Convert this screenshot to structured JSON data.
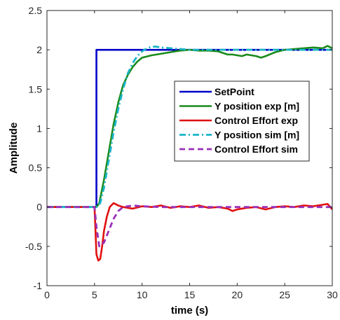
{
  "chart_data": {
    "type": "line",
    "xlabel": "time (s)",
    "ylabel": "Amplitude",
    "xlim": [
      0,
      30
    ],
    "ylim": [
      -1,
      2.5
    ],
    "xticks": [
      0,
      5,
      10,
      15,
      20,
      25,
      30
    ],
    "yticks": [
      -1,
      -0.5,
      0,
      0.5,
      1,
      1.5,
      2,
      2.5
    ],
    "xtick_labels": [
      "0",
      "5",
      "10",
      "15",
      "20",
      "25",
      "30"
    ],
    "ytick_labels": [
      "-1",
      "-0.5",
      "0",
      "0.5",
      "1",
      "1.5",
      "2",
      "2.5"
    ],
    "grid": false,
    "legend_position": "inside-right",
    "series": [
      {
        "name": "SetPoint",
        "color": "#0000c8",
        "dash": "solid",
        "x": [
          0,
          5.2,
          5.2,
          30
        ],
        "y": [
          0,
          0,
          2,
          2
        ]
      },
      {
        "name": "Y position exp [m]",
        "color": "#1a8a1a",
        "dash": "solid",
        "x": [
          0,
          5.2,
          5.5,
          6,
          6.5,
          7,
          7.5,
          8,
          8.5,
          9,
          9.5,
          10,
          11,
          12,
          13,
          14,
          15,
          16,
          17,
          18,
          18.5,
          19,
          19.5,
          20,
          20.5,
          21,
          22,
          22.5,
          23,
          24,
          25,
          26,
          27,
          28,
          29,
          29.5,
          30
        ],
        "y": [
          0,
          0,
          0.05,
          0.35,
          0.7,
          1.05,
          1.33,
          1.55,
          1.68,
          1.78,
          1.85,
          1.9,
          1.93,
          1.95,
          1.97,
          1.99,
          2.0,
          1.99,
          1.99,
          1.98,
          1.96,
          1.94,
          1.94,
          1.93,
          1.92,
          1.94,
          1.92,
          1.9,
          1.92,
          1.97,
          2.0,
          2.01,
          2.02,
          2.03,
          2.02,
          2.05,
          2.02
        ]
      },
      {
        "name": "Control Effort exp",
        "color": "#e01010",
        "dash": "solid",
        "x": [
          0,
          5.0,
          5.2,
          5.4,
          5.6,
          5.8,
          6.0,
          6.3,
          6.6,
          7.0,
          7.5,
          8,
          9,
          10,
          11,
          12,
          13,
          14,
          15,
          16,
          17,
          18,
          19,
          19.5,
          20,
          21,
          22,
          23,
          24,
          25,
          26,
          27,
          28,
          29,
          29.5,
          30
        ],
        "y": [
          0,
          0,
          -0.6,
          -0.68,
          -0.66,
          -0.5,
          -0.3,
          -0.12,
          0.0,
          0.05,
          0.02,
          0.0,
          -0.02,
          0.01,
          0.0,
          0.02,
          -0.01,
          0.01,
          0.0,
          0.02,
          -0.01,
          0.0,
          -0.02,
          -0.05,
          -0.03,
          -0.01,
          0.0,
          -0.03,
          0.0,
          0.01,
          0.0,
          0.02,
          0.01,
          0.03,
          0.04,
          -0.03
        ]
      },
      {
        "name": "Y position sim [m]",
        "color": "#1ab4c8",
        "dash": "dashdot",
        "x": [
          0,
          5.2,
          5.6,
          6,
          6.5,
          7,
          7.5,
          8,
          8.5,
          9,
          9.5,
          10,
          10.5,
          11,
          11.5,
          12,
          13,
          14,
          15,
          17,
          20,
          25,
          30
        ],
        "y": [
          0,
          0,
          0.05,
          0.25,
          0.6,
          0.95,
          1.25,
          1.5,
          1.7,
          1.83,
          1.92,
          1.98,
          2.02,
          2.04,
          2.04,
          2.03,
          2.02,
          2.01,
          2.0,
          2.0,
          2.0,
          2.0,
          2.0
        ]
      },
      {
        "name": "Control Effort sim",
        "color": "#9b30b8",
        "dash": "dashed",
        "x": [
          0,
          5.0,
          5.2,
          5.5,
          6.0,
          6.5,
          7.0,
          7.5,
          8.0,
          9.0,
          10,
          12,
          15,
          20,
          25,
          30
        ],
        "y": [
          0,
          0,
          -0.25,
          -0.5,
          -0.45,
          -0.3,
          -0.15,
          -0.05,
          0.0,
          0.02,
          0.01,
          0.0,
          0.0,
          0.0,
          0.0,
          0.0
        ]
      }
    ]
  }
}
